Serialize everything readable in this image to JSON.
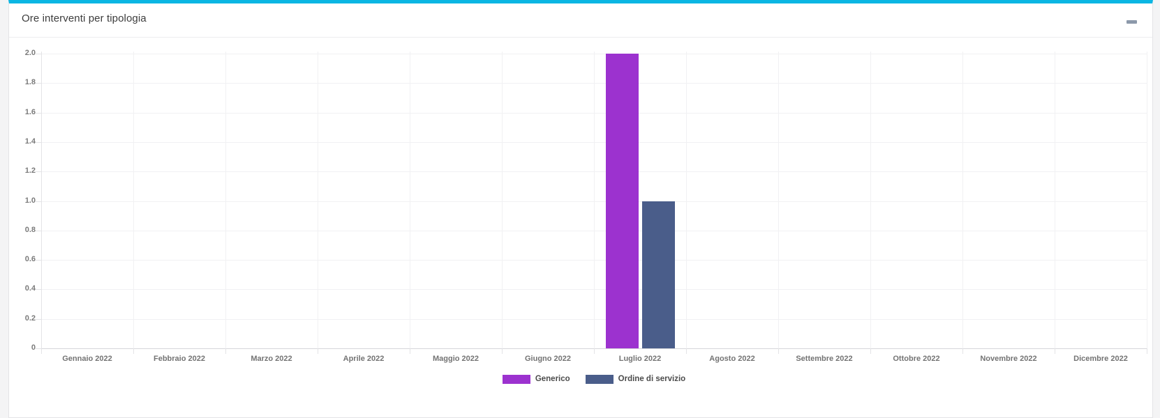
{
  "panel": {
    "title": "Ore interventi per tipologia",
    "accent_color": "#0ab6e3",
    "collapse_icon": "minus-dash"
  },
  "chart_data": {
    "type": "bar",
    "title": "Ore interventi per tipologia",
    "categories": [
      "Gennaio 2022",
      "Febbraio 2022",
      "Marzo 2022",
      "Aprile 2022",
      "Maggio 2022",
      "Giugno 2022",
      "Luglio 2022",
      "Agosto 2022",
      "Settembre 2022",
      "Ottobre 2022",
      "Novembre 2022",
      "Dicembre 2022"
    ],
    "series": [
      {
        "name": "Generico",
        "color": "#9c32cf",
        "values": [
          0,
          0,
          0,
          0,
          0,
          0,
          2,
          0,
          0,
          0,
          0,
          0
        ]
      },
      {
        "name": "Ordine di servizio",
        "color": "#4a5d8a",
        "values": [
          0,
          0,
          0,
          0,
          0,
          0,
          1,
          0,
          0,
          0,
          0,
          0
        ]
      }
    ],
    "ylim": [
      0,
      2
    ],
    "y_ticks": [
      "0",
      "0.2",
      "0.4",
      "0.6",
      "0.8",
      "1.0",
      "1.2",
      "1.4",
      "1.6",
      "1.8",
      "2.0"
    ],
    "grid": true,
    "legend_position": "bottom"
  }
}
